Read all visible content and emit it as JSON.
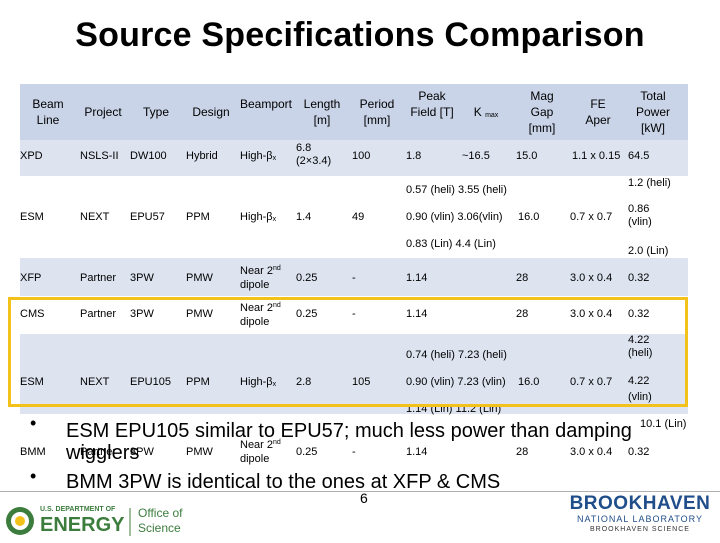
{
  "title": "Source Specifications Comparison",
  "headers": {
    "beam_line": "Beam Line",
    "project": "Project",
    "type": "Type",
    "design": "Design",
    "beamport": "Beamport",
    "length": "Length [m]",
    "period": "Period [mm]",
    "peak_field": "Peak Field [T]",
    "kmax_k": "K",
    "kmax_sub": "max",
    "mag_gap": "Mag Gap [mm]",
    "fe_aper": "FE Aper",
    "total_power": "Total Power [kW]"
  },
  "rows": {
    "xpd": {
      "beam_line": "XPD",
      "project": "NSLS-II",
      "type": "DW100",
      "design": "Hybrid",
      "beamport": "High-β",
      "beamport_sub": "x",
      "length": "6.8 (2×3.4)",
      "period": "100",
      "peak_field": "1.8",
      "kmax": "~16.5",
      "mag_gap": "15.0",
      "fe_aper": "1.1 x 0.15",
      "total_power": "64.5"
    },
    "esm1": {
      "beam_line": "ESM",
      "project": "NEXT",
      "type": "EPU57",
      "design": "PPM",
      "beamport": "High-β",
      "beamport_sub": "x",
      "length": "1.4",
      "period": "49",
      "field_k_1": "0.57 (heli) 3.55 (heli)",
      "field_k_2": "0.90 (vlin) 3.06(vlin)",
      "gap": "16.0",
      "field_k_3": "0.83 (Lin) 4.4 (Lin)",
      "fe_aper": "0.7 x 0.7",
      "power_1": "1.2 (heli)",
      "power_2a": "0.86",
      "power_2b": "(vlin)",
      "power_3": "2.0 (Lin)"
    },
    "xfp": {
      "beam_line": "XFP",
      "project": "Partner",
      "type": "3PW",
      "design": "PMW",
      "beamport_a": "Near 2",
      "beamport_sup": "nd",
      "beamport_b": "dipole",
      "length": "0.25",
      "period": "-",
      "peak_field": "1.14",
      "mag_gap": "28",
      "fe_aper": "3.0 x 0.4",
      "total_power": "0.32"
    },
    "cms": {
      "beam_line": "CMS",
      "project": "Partner",
      "type": "3PW",
      "design": "PMW",
      "beamport_a": "Near 2",
      "beamport_sup": "nd",
      "beamport_b": "dipole",
      "length": "0.25",
      "period": "-",
      "peak_field": "1.14",
      "mag_gap": "28",
      "fe_aper": "3.0 x 0.4",
      "total_power": "0.32"
    },
    "esm2": {
      "beam_line": "ESM",
      "project": "NEXT",
      "type": "EPU105",
      "design": "PPM",
      "beamport": "High-β",
      "beamport_sub": "x",
      "length": "2.8",
      "period": "105",
      "field_k_1": "0.74 (heli) 7.23 (heli)",
      "field_k_2": "0.90 (vlin) 7.23 (vlin)",
      "gap": "16.0",
      "field_k_3": "1.14 (Lin) 11.2 (Lin)",
      "fe_aper": "0.7 x 0.7",
      "power_1a": "4.22",
      "power_1b": "(heli)",
      "power_2a": "4.22",
      "power_2b": "(vlin)",
      "power_3": "10.1 (Lin)"
    },
    "bmm": {
      "beam_line": "BMM",
      "project": "Partner",
      "type": "3PW",
      "design": "PMW",
      "beamport_a": "Near 2",
      "beamport_sup": "nd",
      "beamport_b": "dipole",
      "length": "0.25",
      "period": "-",
      "peak_field": "1.14",
      "mag_gap": "28",
      "fe_aper": "3.0 x 0.4",
      "total_power": "0.32"
    }
  },
  "bullets": [
    "ESM EPU105 similar to EPU57; much less power than damping wigglers",
    "BMM 3PW is identical to the ones at XFP & CMS"
  ],
  "footer": {
    "page_number": "6",
    "doe_line1": "U.S. DEPARTMENT OF",
    "doe_line2": "ENERGY",
    "office_line1": "Office of",
    "office_line2": "Science",
    "bnl_name": "BROOKHAVEN",
    "bnl_sub": "NATIONAL LABORATORY",
    "bnl_tag": "BROOKHAVEN SCIENCE"
  },
  "colors": {
    "header_bg": "#c9d4e8",
    "band_bg": "#dde4f0",
    "highlight": "#f2c21b",
    "doe_green": "#3c7d3e",
    "bnl_blue": "#1f4e8a"
  }
}
